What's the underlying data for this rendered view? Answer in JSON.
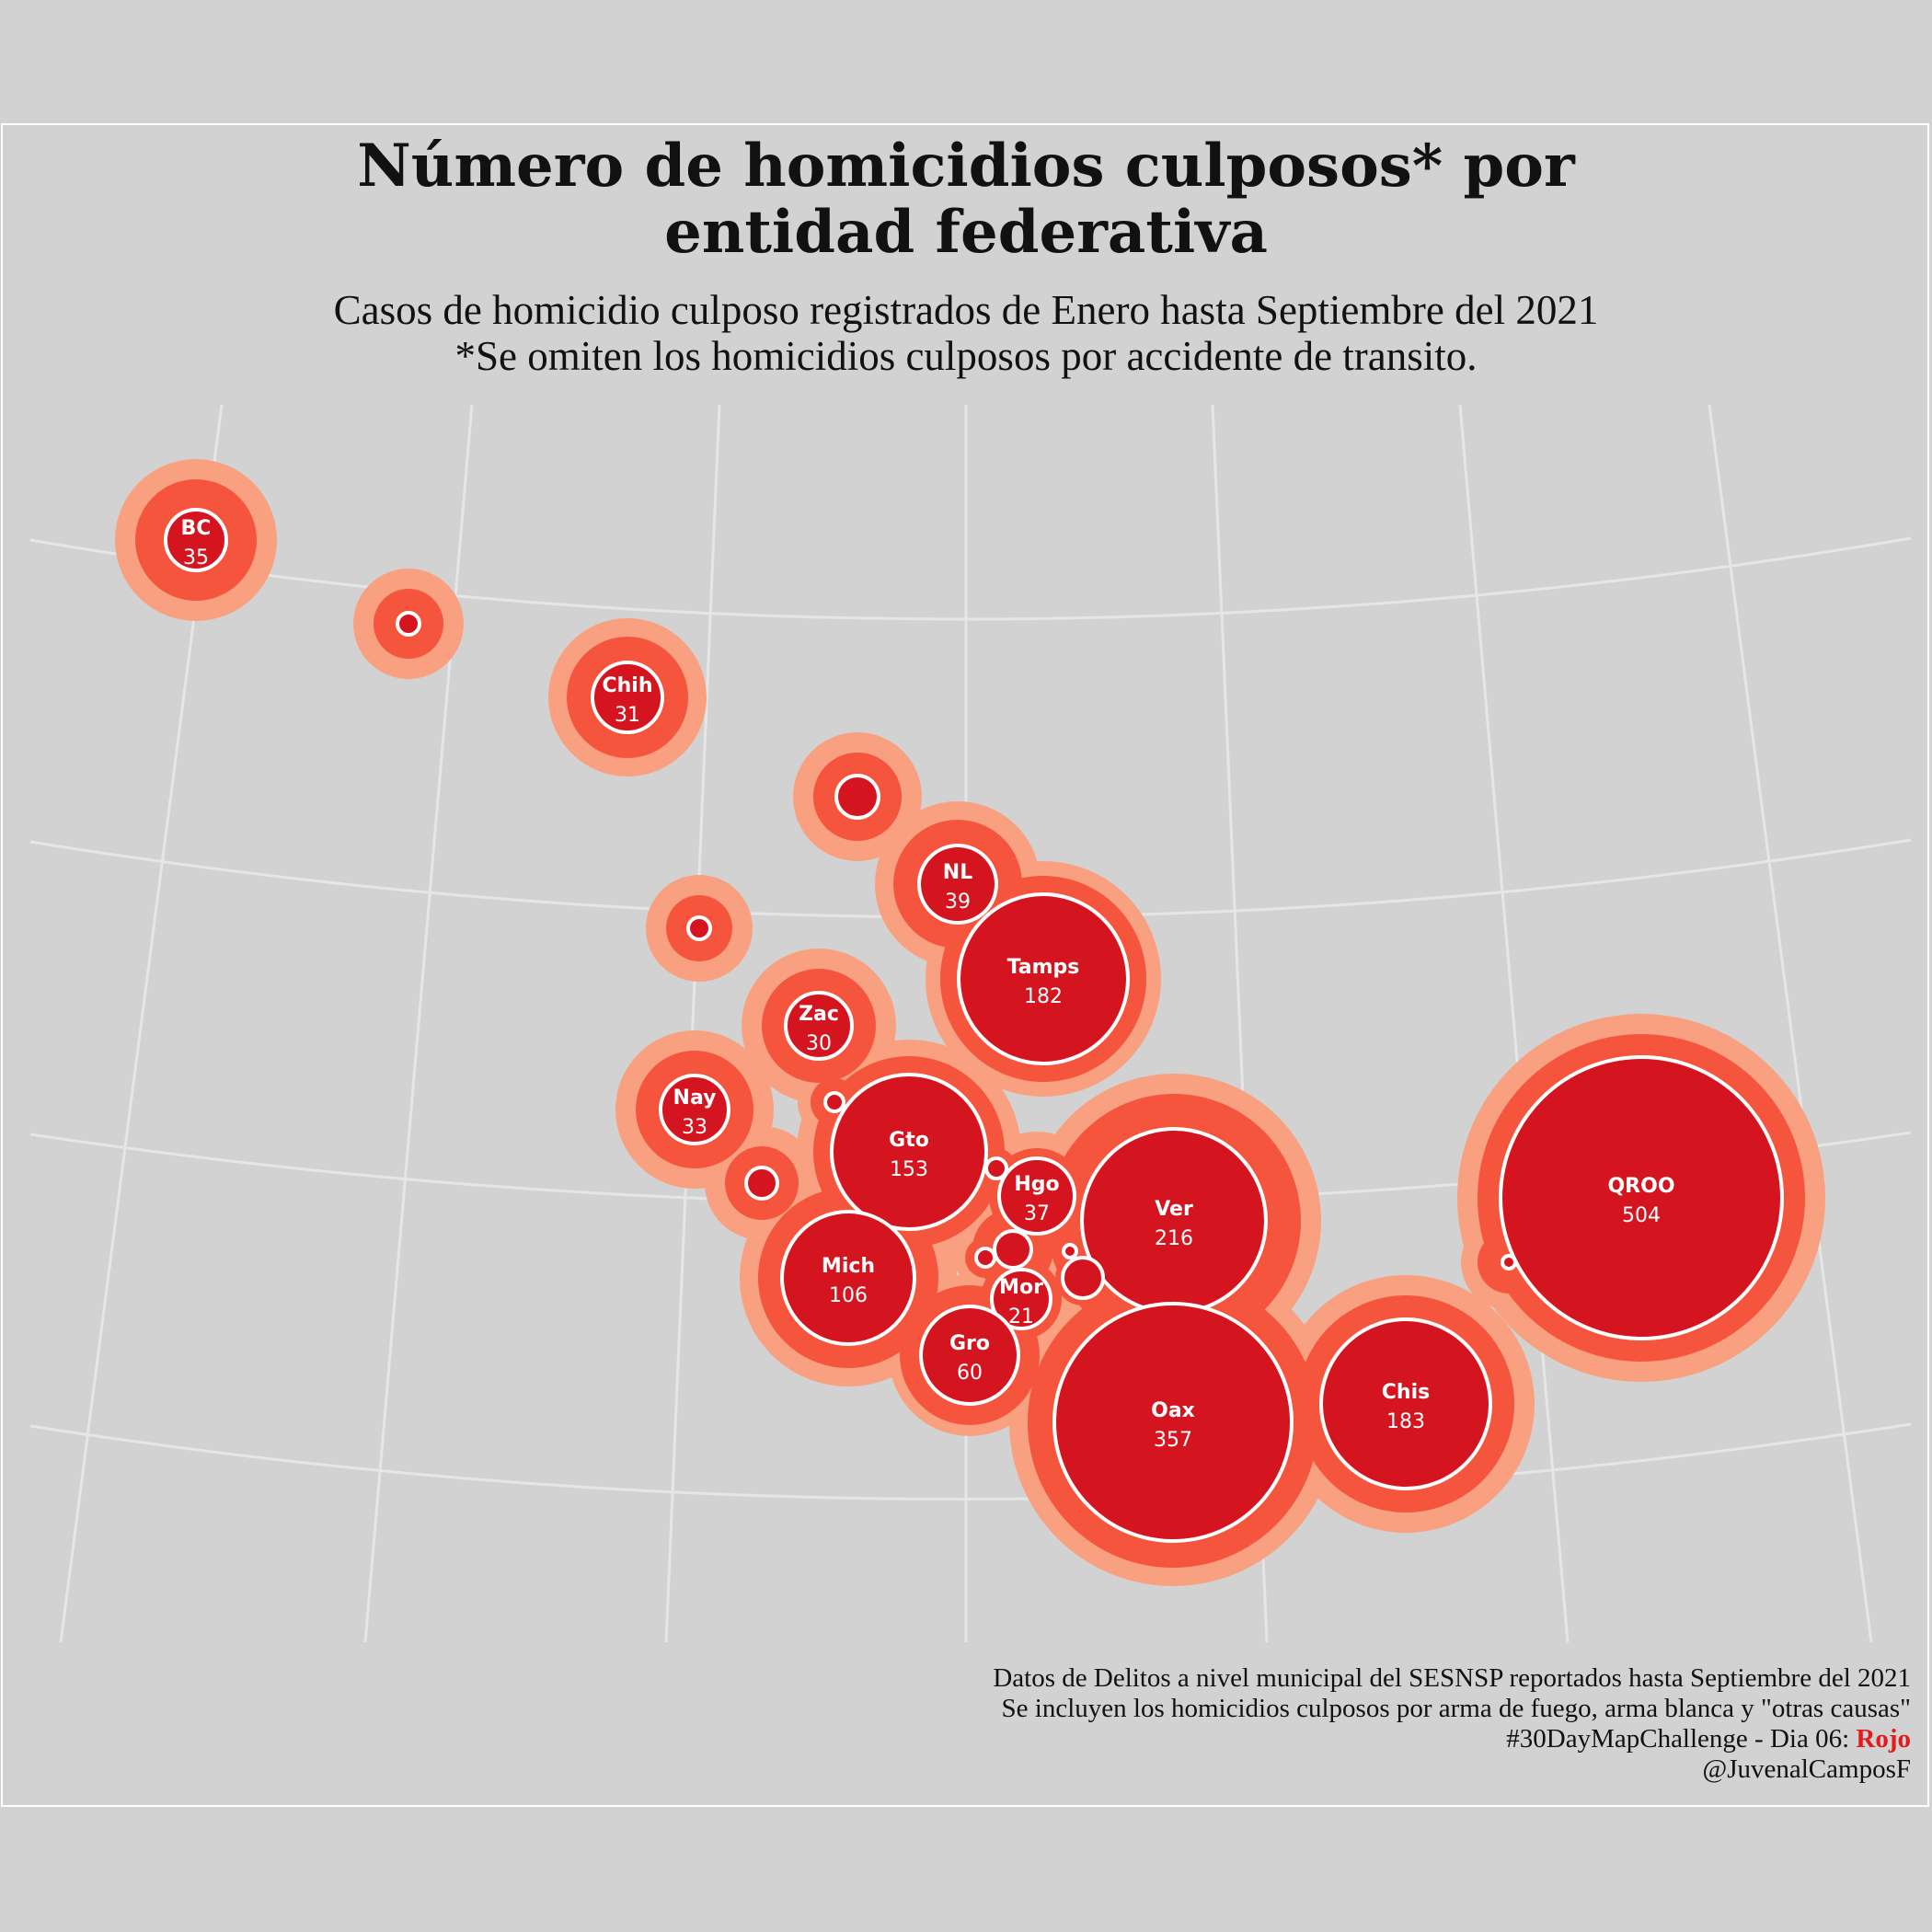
{
  "title": {
    "line1": "Número de homicidios culposos* por",
    "line2": "entidad federativa"
  },
  "subtitle": {
    "line1": "Casos de homicidio culposo registrados de Enero hasta Septiembre del 2021",
    "line2": "*Se omiten los homicidios culposos por accidente de transito."
  },
  "caption": {
    "line1": "Datos de Delitos a nivel municipal del SESNSP reportados hasta Septiembre del 2021",
    "line2": "Se incluyen los homicidios culposos por arma de fuego, arma blanca y \"otras causas\"",
    "line3_prefix": "#30DayMapChallenge - Dia 06: ",
    "line3_accent": "Rojo",
    "line4": "@JuvenalCamposF"
  },
  "colors": {
    "background": "#d2d2d2",
    "graticule": "#e6e6e6",
    "halo_outer": "#f9a081",
    "halo_mid": "#f5553d",
    "core": "#d4151f",
    "outline": "#ffffff",
    "accent": "#e41a1c"
  },
  "chart_data": {
    "type": "proportional-symbol-map",
    "states": [
      {
        "abbr": "BC",
        "value": 35,
        "show_label": true
      },
      {
        "abbr": "",
        "value": 4,
        "show_label": false
      },
      {
        "abbr": "Chih",
        "value": 31,
        "show_label": true
      },
      {
        "abbr": "",
        "value": 12,
        "show_label": false
      },
      {
        "abbr": "NL",
        "value": 39,
        "show_label": true
      },
      {
        "abbr": "",
        "value": 3,
        "show_label": false
      },
      {
        "abbr": "Tamps",
        "value": 182,
        "show_label": true
      },
      {
        "abbr": "Zac",
        "value": 30,
        "show_label": true
      },
      {
        "abbr": "Nay",
        "value": 33,
        "show_label": true
      },
      {
        "abbr": "",
        "value": 2,
        "show_label": false
      },
      {
        "abbr": "Gto",
        "value": 153,
        "show_label": true
      },
      {
        "abbr": "",
        "value": 7,
        "show_label": false
      },
      {
        "abbr": "",
        "value": 2,
        "show_label": false
      },
      {
        "abbr": "Hgo",
        "value": 37,
        "show_label": true
      },
      {
        "abbr": "Ver",
        "value": 216,
        "show_label": true
      },
      {
        "abbr": "QROO",
        "value": 504,
        "show_label": true
      },
      {
        "abbr": "",
        "value": 1,
        "show_label": false
      },
      {
        "abbr": "Mich",
        "value": 106,
        "show_label": true
      },
      {
        "abbr": "",
        "value": 8,
        "show_label": false
      },
      {
        "abbr": "",
        "value": 2,
        "show_label": false
      },
      {
        "abbr": "",
        "value": 1,
        "show_label": false
      },
      {
        "abbr": "",
        "value": 11,
        "show_label": false
      },
      {
        "abbr": "Mor",
        "value": 21,
        "show_label": true
      },
      {
        "abbr": "Gro",
        "value": 60,
        "show_label": true
      },
      {
        "abbr": "Oax",
        "value": 357,
        "show_label": true
      },
      {
        "abbr": "Chis",
        "value": 183,
        "show_label": true
      }
    ]
  }
}
